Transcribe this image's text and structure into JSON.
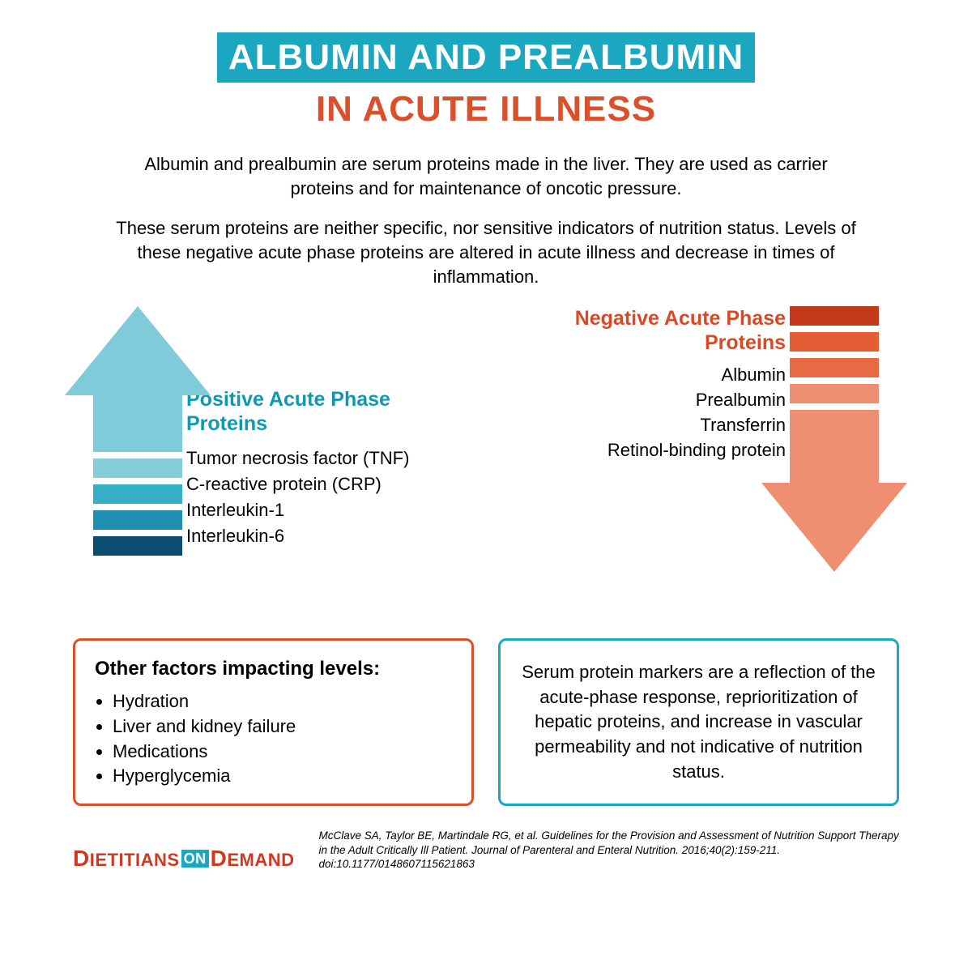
{
  "colors": {
    "teal": "#1ba7c0",
    "teal_heading": "#1098b2",
    "orange": "#d9502b",
    "orange_heading": "#d64a26",
    "text": "#000000",
    "white": "#ffffff",
    "logo_red": "#cc3a21",
    "logo_on_bg": "#1ba7c0",
    "up_head": "#7fcbd9",
    "up_seg1": "#86cdda",
    "up_seg2": "#36b0c7",
    "up_seg3": "#1e8fb0",
    "up_seg4": "#0a4d70",
    "down_seg1": "#c4391a",
    "down_seg2": "#e45d35",
    "down_seg3": "#e86a44",
    "down_seg4": "#ef8f72",
    "down_head": "#ef8f72"
  },
  "title": {
    "line1": "ALBUMIN AND PREALBUMIN",
    "line2": "IN ACUTE ILLNESS",
    "line1_fontsize": 44,
    "line2_fontsize": 44
  },
  "intro1": "Albumin and prealbumin are serum proteins made in the liver. They are used as carrier proteins and for maintenance of oncotic pressure.",
  "intro2": "These serum proteins are neither specific, nor sensitive indicators of nutrition status. Levels of these negative acute phase proteins are altered in acute illness and decrease in times of inflammation.",
  "positive": {
    "heading": "Positive Acute Phase Proteins",
    "items": [
      "Tumor necrosis factor (TNF)",
      "C-reactive protein (CRP)",
      "Interleukin-1",
      "Interleukin-6"
    ]
  },
  "negative": {
    "heading": "Negative Acute Phase Proteins",
    "items": [
      "Albumin",
      "Prealbumin",
      "Transferrin",
      "Retinol-binding protein"
    ]
  },
  "box_left": {
    "heading": "Other factors impacting levels:",
    "items": [
      "Hydration",
      "Liver and kidney failure",
      "Medications",
      "Hyperglycemia"
    ]
  },
  "box_right": "Serum protein markers are a reflection of the acute-phase response, reprioritization of hepatic proteins, and increase in vascular permeability and not indicative of nutrition status.",
  "footer": {
    "logo_part1": "D",
    "logo_part2": "IETITIANS",
    "logo_on": "ON",
    "logo_part3": "D",
    "logo_part4": "EMAND",
    "citation": "McClave SA, Taylor BE, Martindale RG, et al. Guidelines for the Provision and Assessment of Nutrition Support Therapy in the Adult Critically Ill Patient. Journal of Parenteral and Enteral Nutrition. 2016;40(2):159-211. doi:10.1177/0148607115621863"
  },
  "arrows": {
    "gap": 8,
    "seg_height": 24,
    "head_height": 110,
    "shaft_width": 110,
    "head_width": 180
  }
}
